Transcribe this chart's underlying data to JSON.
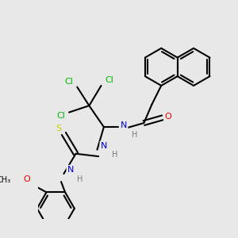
{
  "bg_color": "#e8e8e8",
  "bond_color": "#000000",
  "bond_width": 1.5,
  "atom_colors": {
    "O": "#ff0000",
    "N": "#0000cc",
    "Cl": "#00bb00",
    "S": "#cccc00",
    "C": "#000000",
    "H": "#7a7a7a"
  },
  "font_size_atom": 8,
  "font_size_small": 7,
  "figsize": [
    3.0,
    3.0
  ],
  "dpi": 100
}
